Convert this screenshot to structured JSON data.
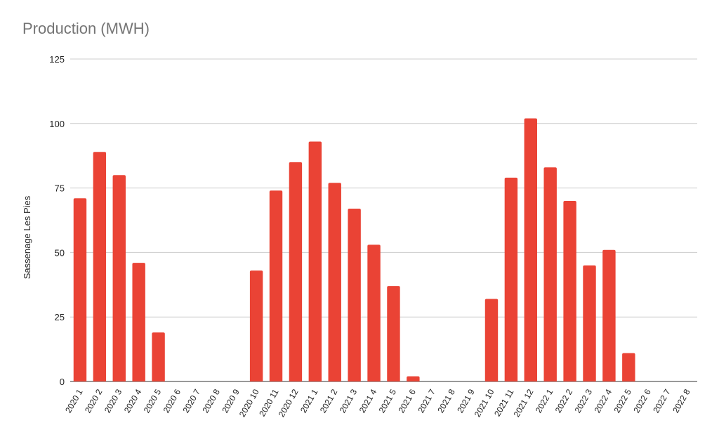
{
  "chart_data": {
    "type": "bar",
    "title": "Production (MWH)",
    "ylabel": "Sassenage Les Pies",
    "xlabel": "",
    "ylim": [
      0,
      125
    ],
    "yticks": [
      0,
      25,
      50,
      75,
      100,
      125
    ],
    "grid": true,
    "bar_color": "#ea4335",
    "categories": [
      "2020 1",
      "2020 2",
      "2020 3",
      "2020 4",
      "2020 5",
      "2020 6",
      "2020 7",
      "2020 8",
      "2020 9",
      "2020 10",
      "2020 11",
      "2020 12",
      "2021 1",
      "2021 2",
      "2021 3",
      "2021 4",
      "2021 5",
      "2021 6",
      "2021 7",
      "2021 8",
      "2021 9",
      "2021 10",
      "2021 11",
      "2021 12",
      "2022 1",
      "2022 2",
      "2022 3",
      "2022 4",
      "2022 5",
      "2022 6",
      "2022 7",
      "2022 8"
    ],
    "values": [
      71,
      89,
      80,
      46,
      19,
      0,
      0,
      0,
      0,
      43,
      74,
      85,
      93,
      77,
      67,
      53,
      37,
      2,
      0,
      0,
      0,
      32,
      79,
      102,
      83,
      70,
      45,
      51,
      11,
      0,
      0,
      0
    ]
  }
}
